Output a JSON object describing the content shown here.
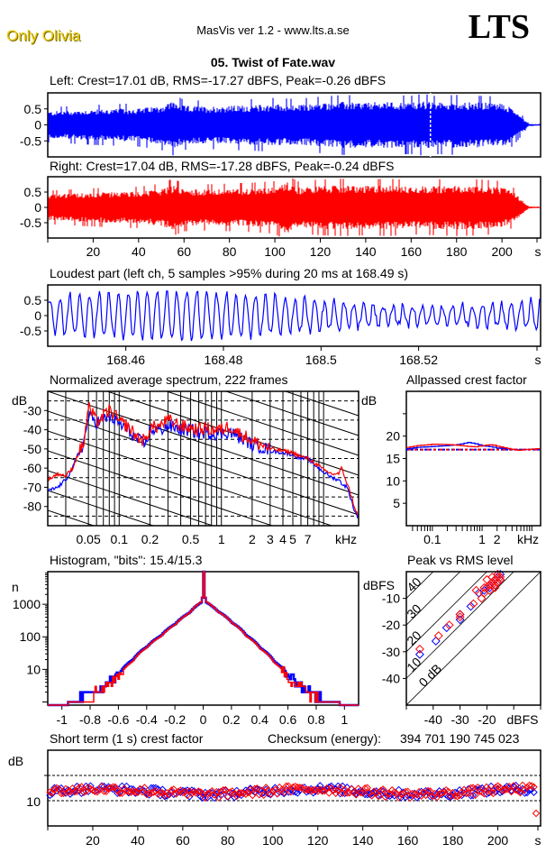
{
  "header": {
    "artist": "Only Olivia",
    "app_title": "MasVis ver 1.2 - www.lts.a.se",
    "logo": "LTS",
    "filename": "05. Twist of Fate.wav"
  },
  "colors": {
    "left": "#0000ff",
    "right": "#ff0000",
    "axis": "#000000"
  },
  "chart_data": [
    {
      "id": "left-waveform",
      "type": "area",
      "title": "Left: Crest=17.01 dB, RMS=-17.27 dBFS, Peak=-0.26 dBFS",
      "ylim": [
        -1,
        1
      ],
      "yticks": [
        "0.5",
        "0",
        "-0.5"
      ],
      "ytick_values": [
        0.5,
        0,
        -0.5
      ],
      "xlim": [
        0,
        217
      ],
      "marker_time_s": 168.49,
      "envelope": {
        "x": [
          0,
          10,
          20,
          30,
          40,
          50,
          55,
          60,
          70,
          80,
          90,
          100,
          110,
          120,
          130,
          140,
          150,
          160,
          165,
          170,
          180,
          190,
          200,
          205,
          208,
          210,
          212,
          217
        ],
        "peak": [
          0.42,
          0.45,
          0.48,
          0.5,
          0.52,
          0.6,
          0.75,
          0.6,
          0.58,
          0.6,
          0.62,
          0.65,
          0.62,
          0.68,
          0.72,
          0.7,
          0.72,
          0.7,
          0.75,
          0.7,
          0.72,
          0.7,
          0.68,
          0.5,
          0.3,
          0.15,
          0.03,
          0.02
        ]
      },
      "series_color": "#0000ff"
    },
    {
      "id": "right-waveform",
      "type": "area",
      "title": "Right: Crest=17.04 dB, RMS=-17.28 dBFS, Peak=-0.24 dBFS",
      "ylim": [
        -1,
        1
      ],
      "yticks": [
        "0.5",
        "0",
        "-0.5"
      ],
      "ytick_values": [
        0.5,
        0,
        -0.5
      ],
      "xlim": [
        0,
        217
      ],
      "xticks": [
        "20",
        "40",
        "60",
        "80",
        "100",
        "120",
        "140",
        "160",
        "180",
        "200"
      ],
      "xtick_values": [
        20,
        40,
        60,
        80,
        100,
        120,
        140,
        160,
        180,
        200
      ],
      "xunit": "s",
      "envelope": {
        "x": [
          0,
          10,
          20,
          30,
          40,
          50,
          55,
          60,
          70,
          80,
          90,
          100,
          105,
          110,
          120,
          130,
          140,
          150,
          160,
          170,
          180,
          190,
          200,
          205,
          208,
          210,
          212,
          217
        ],
        "peak": [
          0.42,
          0.45,
          0.48,
          0.5,
          0.52,
          0.6,
          0.72,
          0.6,
          0.58,
          0.6,
          0.62,
          0.66,
          0.85,
          0.65,
          0.7,
          0.72,
          0.7,
          0.72,
          0.68,
          0.7,
          0.72,
          0.7,
          0.66,
          0.5,
          0.3,
          0.15,
          0.03,
          0.02
        ]
      },
      "series_color": "#ff0000"
    },
    {
      "id": "loudest-part",
      "type": "line",
      "title": "Loudest part (left  ch, 5 samples >95% during 20 ms at 168.49 s)",
      "ylim": [
        -1,
        1
      ],
      "yticks": [
        "0.5",
        "0",
        "-0.5"
      ],
      "ytick_values": [
        0.5,
        0,
        -0.5
      ],
      "xlim": [
        168.444,
        168.545
      ],
      "xticks": [
        "168.46",
        "168.48",
        "168.5",
        "168.52"
      ],
      "xtick_values": [
        168.46,
        168.48,
        168.5,
        168.52
      ],
      "xunit": "s",
      "series_color": "#0000ff",
      "approx_amplitude": 0.6
    },
    {
      "id": "spectrum",
      "type": "line",
      "title": "Normalized average spectrum, 222 frames",
      "ylabel": "dB",
      "ylim": [
        -90,
        -20
      ],
      "yticks": [
        "-30",
        "-40",
        "-50",
        "-60",
        "-70",
        "-80"
      ],
      "ytick_values": [
        -30,
        -40,
        -50,
        -60,
        -70,
        -80
      ],
      "xscale": "log",
      "xlim_khz": [
        0.02,
        22
      ],
      "xticks": [
        "0.05",
        "0.1",
        "0.2",
        "0.5",
        "1",
        "2",
        "3",
        "4",
        "5",
        "7"
      ],
      "xtick_values": [
        0.05,
        0.1,
        0.2,
        0.5,
        1,
        2,
        3,
        4,
        5,
        7
      ],
      "xunit": "kHz",
      "series": [
        {
          "name": "Left",
          "color": "#0000ff",
          "x_khz": [
            0.02,
            0.025,
            0.03,
            0.035,
            0.04,
            0.045,
            0.05,
            0.06,
            0.07,
            0.08,
            0.09,
            0.1,
            0.12,
            0.15,
            0.18,
            0.2,
            0.25,
            0.3,
            0.4,
            0.5,
            0.6,
            0.7,
            0.8,
            1,
            1.2,
            1.5,
            1.8,
            2,
            2.5,
            3,
            4,
            5,
            6,
            7,
            8,
            10,
            12,
            14,
            15,
            17,
            20,
            22
          ],
          "y": [
            -72,
            -70,
            -66,
            -60,
            -52,
            -47,
            -33,
            -36,
            -35,
            -33,
            -35,
            -37,
            -40,
            -45,
            -48,
            -40,
            -40,
            -38,
            -40,
            -40,
            -42,
            -41,
            -42,
            -42,
            -41,
            -44,
            -46,
            -48,
            -49,
            -51,
            -52,
            -53,
            -55,
            -55,
            -58,
            -62,
            -65,
            -66,
            -68,
            -70,
            -82,
            -87
          ]
        },
        {
          "name": "Right",
          "color": "#ff0000",
          "x_khz": [
            0.02,
            0.025,
            0.03,
            0.035,
            0.04,
            0.045,
            0.05,
            0.06,
            0.07,
            0.08,
            0.09,
            0.1,
            0.12,
            0.15,
            0.18,
            0.2,
            0.25,
            0.3,
            0.4,
            0.5,
            0.6,
            0.7,
            0.8,
            1,
            1.2,
            1.5,
            1.8,
            2,
            2.5,
            3,
            4,
            5,
            6,
            7,
            8,
            10,
            12,
            14,
            15,
            17,
            20,
            22
          ],
          "y": [
            -66,
            -63,
            -64,
            -60,
            -52,
            -47,
            -28,
            -36,
            -33,
            -30,
            -32,
            -36,
            -38,
            -44,
            -46,
            -39,
            -38,
            -35,
            -38,
            -39,
            -40,
            -39,
            -40,
            -40,
            -38,
            -42,
            -44,
            -46,
            -48,
            -50,
            -51,
            -52,
            -54,
            -55,
            -57,
            -61,
            -63,
            -63,
            -60,
            -68,
            -80,
            -86
          ]
        }
      ],
      "diagonal_grid": true
    },
    {
      "id": "allpassed-crest",
      "type": "line",
      "title": "Allpassed crest factor",
      "ylabel": "dB",
      "ylim": [
        0,
        30
      ],
      "yticks": [
        "20",
        "15",
        "10",
        "5"
      ],
      "ytick_values": [
        20,
        15,
        10,
        5
      ],
      "xscale": "log",
      "xlim_khz": [
        0.03,
        15
      ],
      "xticks": [
        "0.1",
        "1",
        "2"
      ],
      "xtick_values": [
        0.1,
        1,
        2
      ],
      "xunit": "kHz",
      "reference_level_db": 17.0,
      "series": [
        {
          "name": "Left",
          "color": "#0000ff",
          "x_khz": [
            0.03,
            0.05,
            0.1,
            0.2,
            0.35,
            0.5,
            0.7,
            1,
            1.5,
            2,
            3,
            4,
            5,
            7,
            10,
            15
          ],
          "y": [
            17.2,
            17.5,
            17.7,
            17.9,
            18.2,
            18.6,
            18.3,
            17.8,
            17.6,
            17.3,
            17.2,
            17.0,
            16.9,
            17.0,
            17.1,
            17.2
          ]
        },
        {
          "name": "Right",
          "color": "#ff0000",
          "x_khz": [
            0.03,
            0.05,
            0.1,
            0.2,
            0.35,
            0.5,
            0.7,
            1,
            1.5,
            2,
            3,
            4,
            5,
            7,
            10,
            15
          ],
          "y": [
            17.5,
            17.9,
            18.2,
            18.1,
            17.9,
            17.7,
            17.6,
            17.9,
            18.1,
            17.7,
            17.3,
            17.0,
            16.8,
            17.0,
            17.1,
            17.3
          ]
        }
      ]
    },
    {
      "id": "histogram",
      "type": "line",
      "title": "Histogram, \"bits\": 15.4/15.3",
      "ylabel": "n",
      "yscale": "log",
      "ylim": [
        0.8,
        10000
      ],
      "yticks": [
        "1000",
        "100",
        "10"
      ],
      "ytick_values": [
        1000,
        100,
        10
      ],
      "xlim": [
        -1.1,
        1.1
      ],
      "xticks": [
        "-1",
        "-0.8",
        "-0.6",
        "-0.4",
        "-0.2",
        "0",
        "0.2",
        "0.4",
        "0.6",
        "0.8",
        "1"
      ],
      "xtick_values": [
        -1,
        -0.8,
        -0.6,
        -0.4,
        -0.2,
        0,
        0.2,
        0.4,
        0.6,
        0.8,
        1
      ],
      "series": [
        {
          "name": "Left",
          "color": "#0000ff",
          "x": [
            -1.1,
            -0.97,
            -0.9,
            -0.8,
            -0.7,
            -0.6,
            -0.5,
            -0.4,
            -0.3,
            -0.2,
            -0.1,
            -0.01,
            0,
            0.01,
            0.1,
            0.2,
            0.3,
            0.4,
            0.5,
            0.6,
            0.7,
            0.8,
            0.9,
            0.95,
            1.1
          ],
          "y": [
            0.8,
            1,
            1,
            2,
            3,
            7,
            20,
            50,
            110,
            250,
            550,
            1200,
            10000,
            1200,
            600,
            270,
            110,
            45,
            17,
            6,
            3,
            1.5,
            1,
            1,
            0.8
          ]
        },
        {
          "name": "Right",
          "color": "#ff0000",
          "x": [
            -1.1,
            -0.97,
            -0.9,
            -0.8,
            -0.7,
            -0.6,
            -0.5,
            -0.4,
            -0.3,
            -0.2,
            -0.1,
            -0.01,
            0,
            0.01,
            0.1,
            0.2,
            0.3,
            0.4,
            0.5,
            0.6,
            0.7,
            0.8,
            0.9,
            0.95,
            1.1
          ],
          "y": [
            0.8,
            1,
            1,
            1.5,
            3,
            6,
            18,
            48,
            105,
            240,
            540,
            1250,
            10000,
            1250,
            590,
            265,
            105,
            43,
            16,
            5,
            2.5,
            1.5,
            1,
            1,
            0.8
          ]
        }
      ]
    },
    {
      "id": "peak-vs-rms",
      "type": "scatter",
      "title": "Peak vs RMS level",
      "ylabel": "dBFS",
      "xlabel": "dBFS",
      "xlim": [
        -50,
        0
      ],
      "ylim": [
        -50,
        0
      ],
      "yticks": [
        "-10",
        "-20",
        "-30",
        "-40"
      ],
      "ytick_values": [
        -10,
        -20,
        -30,
        -40
      ],
      "xticks": [
        "-40",
        "-30",
        "-20"
      ],
      "xtick_values": [
        -40,
        -30,
        -20
      ],
      "crest_lines_db": [
        "0 dB",
        "10",
        "20",
        "30",
        "40"
      ],
      "crest_line_values": [
        0,
        10,
        20,
        30,
        40
      ],
      "series": [
        {
          "name": "Left",
          "color": "#0000ff",
          "rms": [
            -45,
            -39,
            -35,
            -30,
            -30,
            -26,
            -23,
            -21,
            -20,
            -19,
            -18,
            -17,
            -16,
            -16,
            -15,
            -15,
            -17,
            -18,
            -19,
            -16
          ],
          "peak": [
            -31,
            -26,
            -21,
            -18,
            -16,
            -13,
            -8,
            -7,
            -6,
            -5,
            -4,
            -3,
            -2,
            -1,
            -1,
            -3,
            -5,
            -4,
            -6,
            -4
          ]
        },
        {
          "name": "Right",
          "color": "#ff0000",
          "rms": [
            -45,
            -38,
            -34,
            -30,
            -30,
            -25,
            -24,
            -22,
            -21,
            -20,
            -19,
            -18,
            -17,
            -16,
            -16,
            -15,
            -17,
            -18,
            -19,
            -20,
            -17,
            -16,
            -15,
            -18,
            -21
          ],
          "peak": [
            -29,
            -24,
            -20,
            -17,
            -16,
            -12,
            -7,
            -10,
            -8,
            -6,
            -5,
            -4,
            -3,
            -2,
            -1,
            -2,
            -6,
            -5,
            -7,
            -3,
            -5,
            -4,
            -3,
            -2,
            -6
          ]
        }
      ]
    },
    {
      "id": "short-term-crest",
      "type": "scatter",
      "title": "Short term (1 s) crest factor",
      "checksum_label": "Checksum (energy):",
      "checksum_value": "394 701 190 745 023",
      "ylabel": "dB",
      "ylim": [
        5,
        20
      ],
      "yticks": [
        "10"
      ],
      "ytick_values": [
        10
      ],
      "dashed_lines_db": [
        10,
        15
      ],
      "xlim": [
        0,
        219
      ],
      "xticks": [
        "20",
        "40",
        "60",
        "80",
        "100",
        "120",
        "140",
        "160",
        "180",
        "200"
      ],
      "xtick_values": [
        20,
        40,
        60,
        80,
        100,
        120,
        140,
        160,
        180,
        200
      ],
      "xunit": "s",
      "series": [
        {
          "name": "Left",
          "color": "#0000ff",
          "mean_db": 11.8,
          "spread_db": 0.8
        },
        {
          "name": "Right",
          "color": "#ff0000",
          "mean_db": 11.8,
          "spread_db": 0.8,
          "last_point": {
            "x": 217,
            "y": 7.5
          }
        }
      ]
    }
  ]
}
